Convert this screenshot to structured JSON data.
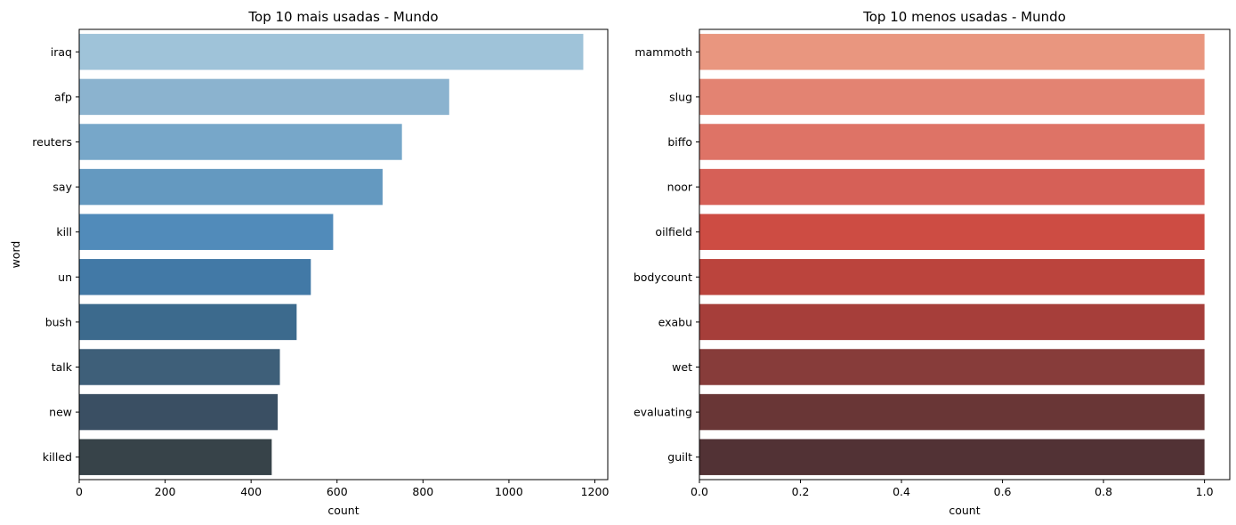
{
  "chart_data": [
    {
      "type": "bar",
      "orientation": "horizontal",
      "title": "Top 10 mais usadas - Mundo",
      "xlabel": "count",
      "ylabel": "word",
      "xlim": [
        0,
        1230
      ],
      "xticks": [
        0,
        200,
        400,
        600,
        800,
        1000,
        1200
      ],
      "categories": [
        "iraq",
        "afp",
        "reuters",
        "say",
        "kill",
        "un",
        "bush",
        "talk",
        "new",
        "killed"
      ],
      "values": [
        1173,
        861,
        751,
        706,
        591,
        539,
        506,
        467,
        462,
        448
      ],
      "colors": [
        "#9fc3d9",
        "#8bb3cf",
        "#77a7c9",
        "#6499c0",
        "#518bba",
        "#4279a6",
        "#3c6a8d",
        "#3e5f79",
        "#3a4f63",
        "#374349"
      ],
      "grid": false,
      "legend": "none"
    },
    {
      "type": "bar",
      "orientation": "horizontal",
      "title": "Top 10 menos usadas - Mundo",
      "xlabel": "count",
      "ylabel": "",
      "xlim": [
        0,
        1.05
      ],
      "xticks": [
        "0.0",
        "0.2",
        "0.4",
        "0.6",
        "0.8",
        "1.0"
      ],
      "categories": [
        "mammoth",
        "slug",
        "biffo",
        "noor",
        "oilfield",
        "bodycount",
        "exabu",
        "wet",
        "evaluating",
        "guilt"
      ],
      "values": [
        1,
        1,
        1,
        1,
        1,
        1,
        1,
        1,
        1,
        1
      ],
      "colors": [
        "#e9967f",
        "#e38372",
        "#de7366",
        "#d66057",
        "#cd4c43",
        "#bb443d",
        "#a63e3a",
        "#873c3a",
        "#693636",
        "#523235"
      ],
      "grid": false,
      "legend": "none"
    }
  ]
}
